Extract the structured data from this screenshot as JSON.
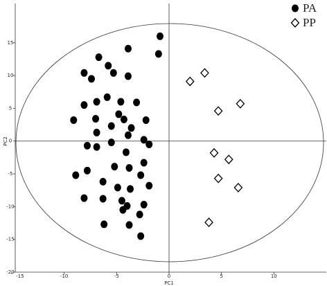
{
  "chart_data": {
    "type": "scatter",
    "x_label": "PC1",
    "y_label": "PC2",
    "xlim": [
      -15,
      15
    ],
    "ylim": [
      -20,
      21
    ],
    "xticks": [
      -15,
      -10,
      -5,
      0,
      5,
      10
    ],
    "yticks": [
      -20,
      -15,
      -10,
      -5,
      0,
      5,
      10,
      15
    ],
    "legend": "top-right",
    "series": [
      {
        "name": "PA",
        "color": "#000000",
        "marker": "circle",
        "x": [
          -0.86,
          -3.9,
          -1.0,
          -6.7,
          -5.8,
          -5.3,
          -8.1,
          -3.9,
          -7.4,
          -5.9,
          -6.9,
          -4.6,
          -3.1,
          -8.1,
          -4.8,
          -9.1,
          -7.0,
          -4.3,
          -2.2,
          -5.5,
          -3.6,
          -6.9,
          -2.4,
          -3.9,
          -1.9,
          -7.8,
          -6.9,
          -5.5,
          -4.1,
          -2.4,
          -5.2,
          -3.8,
          -7.8,
          -8.9,
          -2.7,
          -6.3,
          -4.9,
          -3.7,
          -1.9,
          -8.1,
          -6.3,
          -4.5,
          -4.0,
          -2.4,
          -4.4,
          -2.8,
          -6.2,
          -3.8,
          -2.7
        ],
        "values": [
          16.0,
          14.1,
          13.3,
          12.8,
          11.5,
          10.4,
          10.4,
          9.9,
          9.5,
          6.7,
          6.0,
          6.0,
          5.9,
          5.5,
          4.1,
          3.2,
          3.4,
          3.3,
          3.2,
          2.3,
          2.0,
          1.3,
          0.2,
          0.9,
          -0.5,
          -0.7,
          -0.9,
          -0.2,
          -1.7,
          -3.3,
          -3.9,
          -4.1,
          -4.5,
          -5.2,
          -5.2,
          -6.2,
          -7.1,
          -7.3,
          -6.8,
          -8.7,
          -8.8,
          -9.1,
          -9.9,
          -9.7,
          -10.5,
          -11.2,
          -12.7,
          -12.8,
          -14.5
        ]
      },
      {
        "name": "PP",
        "color": "#000000",
        "marker": "diamond",
        "x": [
          2.0,
          3.4,
          4.7,
          6.8,
          4.3,
          5.7,
          4.7,
          6.6,
          3.8
        ],
        "values": [
          9.1,
          10.4,
          4.6,
          5.7,
          -1.8,
          -2.8,
          -5.7,
          -7.1,
          -12.4
        ]
      }
    ]
  }
}
